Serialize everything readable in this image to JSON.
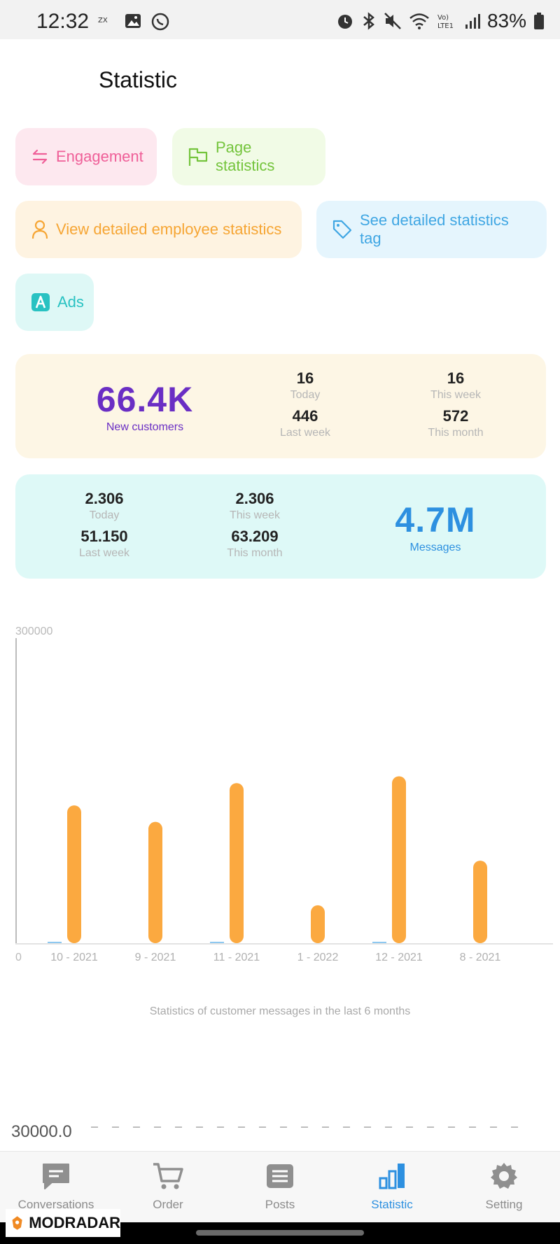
{
  "status_bar": {
    "time": "12:32",
    "battery": "83%",
    "network": "Vo) LTE1"
  },
  "header": {
    "title": "Statistic"
  },
  "chips": {
    "engagement": "Engagement",
    "page_statistics": "Page statistics",
    "employee_statistics": "View detailed employee statistics",
    "statistics_tag": "See detailed statistics tag",
    "ads": "Ads"
  },
  "customers_card": {
    "big_value": "66.4K",
    "big_label": "New customers",
    "today_value": "16",
    "today_label": "Today",
    "last_week_value": "446",
    "last_week_label": "Last week",
    "this_week_value": "16",
    "this_week_label": "This week",
    "this_month_value": "572",
    "this_month_label": "This month"
  },
  "messages_card": {
    "big_value": "4.7M",
    "big_label": "Messages",
    "today_value": "2.306",
    "today_label": "Today",
    "last_week_value": "51.150",
    "last_week_label": "Last week",
    "this_week_value": "2.306",
    "this_week_label": "This week",
    "this_month_value": "63.209",
    "this_month_label": "This month"
  },
  "chart_data": {
    "type": "bar",
    "title": "",
    "caption": "Statistics of customer messages in the last 6 months",
    "ymax_label": "300000",
    "y_origin_label": "0",
    "ylim": [
      0,
      300000
    ],
    "categories": [
      "10 - 2021",
      "9 - 2021",
      "11 - 2021",
      "1 - 2022",
      "12 - 2021",
      "8 - 2021"
    ],
    "series": [
      {
        "values": [
          1000,
          0,
          1000,
          0,
          1000,
          0
        ],
        "color": "#8ec8f0"
      },
      {
        "values": [
          142000,
          125000,
          165000,
          39000,
          172000,
          85000
        ],
        "color": "#fba940"
      }
    ]
  },
  "second_chart": {
    "y_label": "30000.0"
  },
  "bottom_nav": {
    "items": [
      {
        "label": "Conversations",
        "icon": "chat-icon"
      },
      {
        "label": "Order",
        "icon": "cart-icon"
      },
      {
        "label": "Posts",
        "icon": "posts-icon"
      },
      {
        "label": "Statistic",
        "icon": "bar-chart-icon"
      },
      {
        "label": "Setting",
        "icon": "gear-icon"
      }
    ],
    "active_index": 3
  },
  "watermark": {
    "text": "MODRADAR"
  }
}
